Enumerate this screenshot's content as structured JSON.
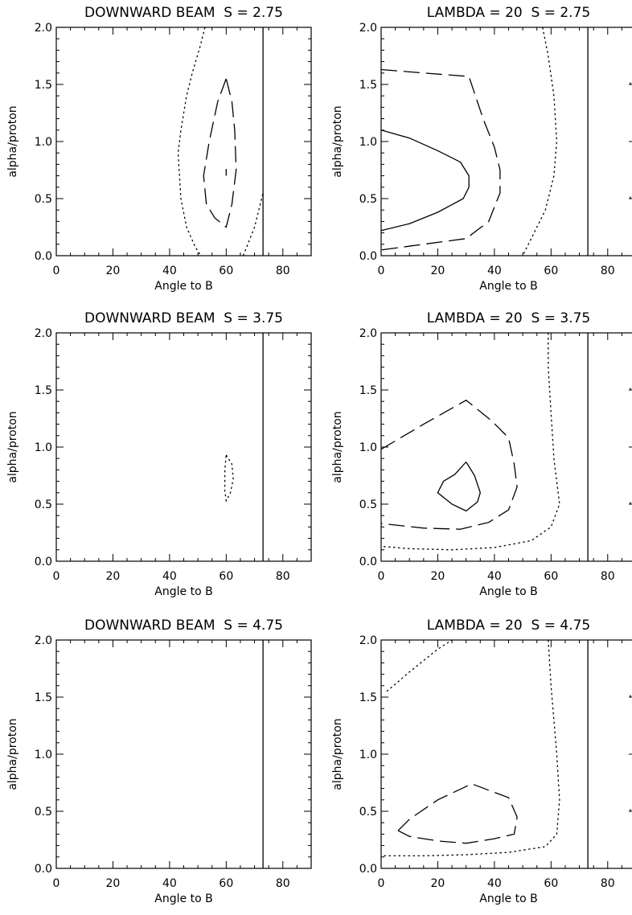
{
  "chart_data": [
    {
      "type": "contour",
      "title": "DOWNWARD BEAM  S = 2.75",
      "xlabel": "Angle to B",
      "ylabel": "alpha/proton",
      "xlim": [
        0,
        90
      ],
      "ylim": [
        0,
        2
      ],
      "xticks": [
        "0",
        "20",
        "40",
        "60",
        "80"
      ],
      "yticks": [
        "0.0",
        "0.5",
        "1.0",
        "1.5",
        "2.0"
      ],
      "vline_x": 73,
      "contours": [
        {
          "style": "dotted",
          "points": [
            [
              52.5,
              2.0
            ],
            [
              51,
              1.85
            ],
            [
              48,
              1.6
            ],
            [
              46,
              1.4
            ],
            [
              44,
              1.1
            ],
            [
              43,
              0.9
            ],
            [
              44,
              0.5
            ],
            [
              46,
              0.25
            ],
            [
              49,
              0.08
            ],
            [
              51,
              0.0
            ]
          ]
        },
        {
          "style": "dotted",
          "points": [
            [
              66,
              0.0
            ],
            [
              70,
              0.25
            ],
            [
              73,
              0.55
            ]
          ]
        },
        {
          "style": "dashed",
          "points": [
            [
              60,
              1.55
            ],
            [
              57,
              1.35
            ],
            [
              54,
              1.0
            ],
            [
              52,
              0.7
            ],
            [
              53,
              0.45
            ],
            [
              56,
              0.33
            ],
            [
              60,
              0.25
            ],
            [
              62,
              0.45
            ],
            [
              63.5,
              0.75
            ],
            [
              63,
              1.1
            ],
            [
              62,
              1.35
            ],
            [
              60,
              1.55
            ]
          ]
        },
        {
          "style": "solid",
          "points": [
            [
              60,
              0.7
            ],
            [
              60,
              0.76
            ]
          ]
        }
      ]
    },
    {
      "type": "contour",
      "title": "LAMBDA = 20  S = 2.75",
      "xlabel": "Angle to B",
      "ylabel": "alpha/proton",
      "xlim": [
        0,
        90
      ],
      "ylim": [
        0,
        2
      ],
      "xticks": [
        "0",
        "20",
        "40",
        "60",
        "80"
      ],
      "yticks": [
        "0.0",
        "0.5",
        "1.0",
        "1.5",
        "2.0"
      ],
      "vline_x": 73,
      "contours": [
        {
          "style": "solid",
          "points": [
            [
              0,
              1.1
            ],
            [
              10,
              1.03
            ],
            [
              20,
              0.92
            ],
            [
              28,
              0.82
            ],
            [
              31,
              0.7
            ],
            [
              31,
              0.6
            ],
            [
              29,
              0.5
            ],
            [
              20,
              0.38
            ],
            [
              10,
              0.28
            ],
            [
              0,
              0.22
            ]
          ]
        },
        {
          "style": "dashed",
          "points": [
            [
              0,
              1.63
            ],
            [
              15,
              1.6
            ],
            [
              31,
              1.57
            ],
            [
              36,
              1.2
            ],
            [
              40,
              0.95
            ],
            [
              42,
              0.75
            ],
            [
              42,
              0.55
            ],
            [
              38,
              0.3
            ],
            [
              30,
              0.15
            ],
            [
              15,
              0.1
            ],
            [
              0,
              0.05
            ]
          ]
        },
        {
          "style": "dotted",
          "points": [
            [
              57,
              2.0
            ],
            [
              59,
              1.75
            ],
            [
              61,
              1.4
            ],
            [
              62,
              1.0
            ],
            [
              61,
              0.7
            ],
            [
              58,
              0.4
            ],
            [
              54,
              0.2
            ],
            [
              50,
              0.0
            ]
          ]
        },
        {
          "style": "dotted",
          "points": [
            [
              88,
              1.5
            ],
            [
              88,
              1.52
            ]
          ]
        },
        {
          "style": "dotted",
          "points": [
            [
              88,
              0.5
            ],
            [
              88,
              0.52
            ]
          ]
        }
      ]
    },
    {
      "type": "contour",
      "title": "DOWNWARD BEAM  S = 3.75",
      "xlabel": "Angle to B",
      "ylabel": "alpha/proton",
      "xlim": [
        0,
        90
      ],
      "ylim": [
        0,
        2
      ],
      "xticks": [
        "0",
        "20",
        "40",
        "60",
        "80"
      ],
      "yticks": [
        "0.0",
        "0.5",
        "1.0",
        "1.5",
        "2.0"
      ],
      "vline_x": 73,
      "contours": [
        {
          "style": "dotted",
          "points": [
            [
              60,
              0.93
            ],
            [
              62,
              0.85
            ],
            [
              62.5,
              0.72
            ],
            [
              61.5,
              0.6
            ],
            [
              60,
              0.53
            ],
            [
              59.5,
              0.62
            ],
            [
              59.5,
              0.8
            ],
            [
              60,
              0.93
            ]
          ]
        }
      ]
    },
    {
      "type": "contour",
      "title": "LAMBDA = 20  S = 3.75",
      "xlabel": "Angle to B",
      "ylabel": "alpha/proton",
      "xlim": [
        0,
        90
      ],
      "ylim": [
        0,
        2
      ],
      "xticks": [
        "0",
        "20",
        "40",
        "60",
        "80"
      ],
      "yticks": [
        "0.0",
        "0.5",
        "1.0",
        "1.5",
        "2.0"
      ],
      "vline_x": 73,
      "contours": [
        {
          "style": "solid",
          "points": [
            [
              30,
              0.87
            ],
            [
              33,
              0.75
            ],
            [
              35,
              0.6
            ],
            [
              34,
              0.52
            ],
            [
              30,
              0.44
            ],
            [
              25,
              0.5
            ],
            [
              20,
              0.6
            ],
            [
              22,
              0.7
            ],
            [
              26,
              0.76
            ],
            [
              30,
              0.87
            ]
          ]
        },
        {
          "style": "dashed",
          "points": [
            [
              0,
              0.98
            ],
            [
              15,
              1.2
            ],
            [
              30,
              1.41
            ],
            [
              39,
              1.23
            ],
            [
              45,
              1.08
            ],
            [
              47,
              0.85
            ],
            [
              48,
              0.65
            ],
            [
              45,
              0.45
            ],
            [
              38,
              0.34
            ],
            [
              28,
              0.28
            ],
            [
              15,
              0.29
            ],
            [
              0,
              0.33
            ]
          ]
        },
        {
          "style": "dotted",
          "points": [
            [
              59,
              2.0
            ],
            [
              59,
              1.7
            ],
            [
              60,
              1.3
            ],
            [
              61,
              0.9
            ],
            [
              63,
              0.5
            ],
            [
              60,
              0.3
            ],
            [
              53,
              0.18
            ],
            [
              40,
              0.12
            ],
            [
              25,
              0.1
            ],
            [
              10,
              0.11
            ],
            [
              0,
              0.13
            ]
          ]
        },
        {
          "style": "dotted",
          "points": [
            [
              88,
              1.5
            ],
            [
              88,
              1.52
            ]
          ]
        },
        {
          "style": "dotted",
          "points": [
            [
              88,
              0.5
            ],
            [
              88,
              0.52
            ]
          ]
        }
      ]
    },
    {
      "type": "contour",
      "title": "DOWNWARD BEAM  S = 4.75",
      "xlabel": "Angle to B",
      "ylabel": "alpha/proton",
      "xlim": [
        0,
        90
      ],
      "ylim": [
        0,
        2
      ],
      "xticks": [
        "0",
        "20",
        "40",
        "60",
        "80"
      ],
      "yticks": [
        "0.0",
        "0.5",
        "1.0",
        "1.5",
        "2.0"
      ],
      "vline_x": 73,
      "contours": []
    },
    {
      "type": "contour",
      "title": "LAMBDA = 20  S = 4.75",
      "xlabel": "Angle to B",
      "ylabel": "alpha/proton",
      "xlim": [
        0,
        90
      ],
      "ylim": [
        0,
        2
      ],
      "xticks": [
        "0",
        "20",
        "40",
        "60",
        "80"
      ],
      "yticks": [
        "0.0",
        "0.5",
        "1.0",
        "1.5",
        "2.0"
      ],
      "vline_x": 73,
      "contours": [
        {
          "style": "dashed",
          "points": [
            [
              6,
              0.33
            ],
            [
              10,
              0.43
            ],
            [
              20,
              0.6
            ],
            [
              32,
              0.74
            ],
            [
              45,
              0.62
            ],
            [
              48,
              0.45
            ],
            [
              47,
              0.3
            ],
            [
              40,
              0.26
            ],
            [
              30,
              0.22
            ],
            [
              20,
              0.24
            ],
            [
              10,
              0.28
            ],
            [
              6,
              0.33
            ]
          ]
        },
        {
          "style": "dotted",
          "points": [
            [
              2,
              1.55
            ],
            [
              10,
              1.72
            ],
            [
              20,
              1.92
            ],
            [
              25,
              2.0
            ]
          ]
        },
        {
          "style": "dotted",
          "points": [
            [
              59,
              2.0
            ],
            [
              60,
              1.6
            ],
            [
              62,
              1.0
            ],
            [
              63,
              0.6
            ],
            [
              62,
              0.3
            ],
            [
              58,
              0.19
            ],
            [
              45,
              0.14
            ],
            [
              30,
              0.12
            ],
            [
              15,
              0.11
            ],
            [
              0,
              0.11
            ]
          ]
        },
        {
          "style": "dotted",
          "points": [
            [
              88,
              1.5
            ],
            [
              88,
              1.52
            ]
          ]
        },
        {
          "style": "dotted",
          "points": [
            [
              88,
              0.5
            ],
            [
              88,
              0.52
            ]
          ]
        }
      ]
    }
  ]
}
